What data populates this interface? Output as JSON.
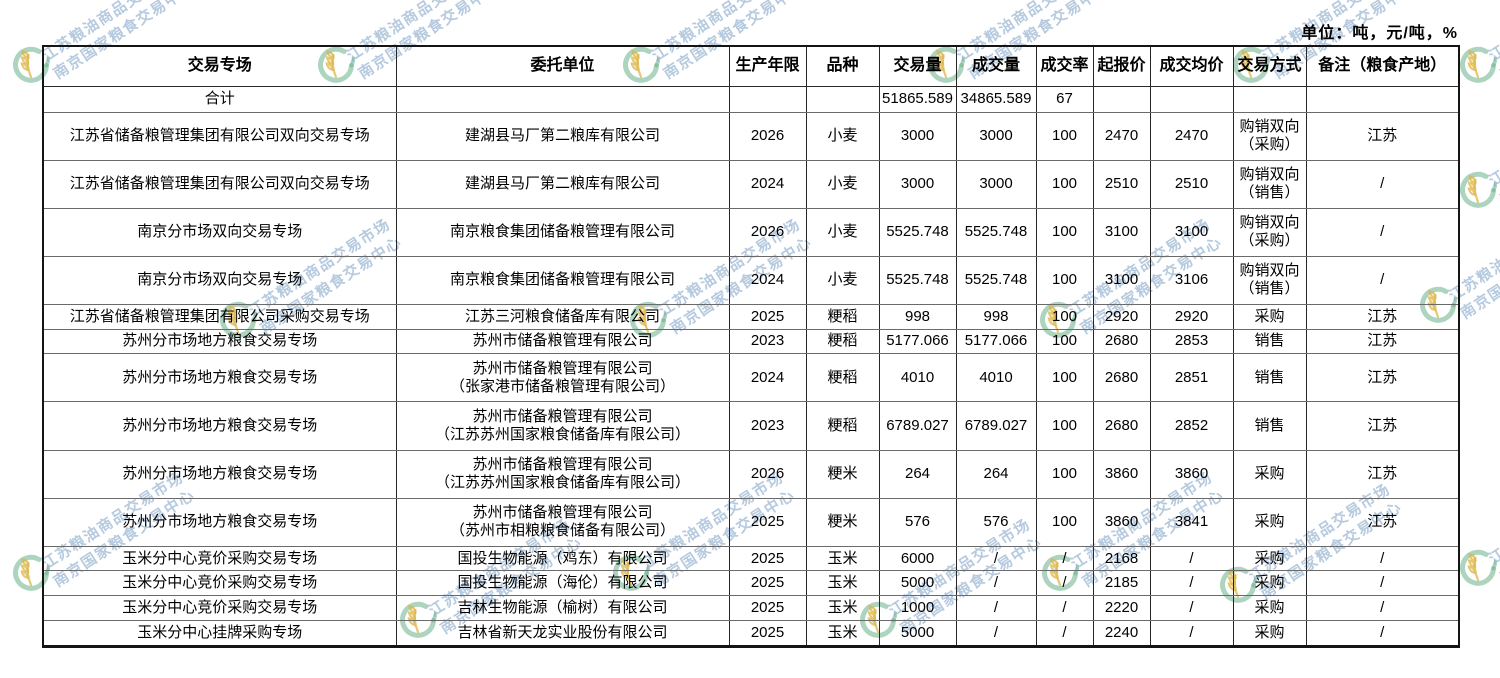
{
  "page": {
    "units_label": "单位：吨，元/吨，%"
  },
  "watermark": {
    "line1": "江苏粮油商品交易市场",
    "line2": "南京国家粮食交易中心",
    "text_color": "rgba(122,159,197,0.55)",
    "logo_ring_color": "rgba(105,176,139,0.55)",
    "logo_wheat_color": "rgba(220,180,70,0.75)"
  },
  "table": {
    "headers": [
      "交易专场",
      "委托单位",
      "生产年限",
      "品种",
      "交易量",
      "成交量",
      "成交率",
      "起报价",
      "成交均价",
      "交易方式",
      "备注（粮食产地）"
    ],
    "summary_row": [
      "合计",
      "",
      "",
      "",
      "51865.589",
      "34865.589",
      "67",
      "",
      "",
      "",
      ""
    ],
    "rows": [
      [
        "江苏省储备粮管理集团有限公司双向交易专场",
        "建湖县马厂第二粮库有限公司",
        "2026",
        "小麦",
        "3000",
        "3000",
        "100",
        "2470",
        "2470",
        "购销双向\n（采购）",
        "江苏"
      ],
      [
        "江苏省储备粮管理集团有限公司双向交易专场",
        "建湖县马厂第二粮库有限公司",
        "2024",
        "小麦",
        "3000",
        "3000",
        "100",
        "2510",
        "2510",
        "购销双向\n（销售）",
        "/"
      ],
      [
        "南京分市场双向交易专场",
        "南京粮食集团储备粮管理有限公司",
        "2026",
        "小麦",
        "5525.748",
        "5525.748",
        "100",
        "3100",
        "3100",
        "购销双向\n（采购）",
        "/"
      ],
      [
        "南京分市场双向交易专场",
        "南京粮食集团储备粮管理有限公司",
        "2024",
        "小麦",
        "5525.748",
        "5525.748",
        "100",
        "3100",
        "3106",
        "购销双向\n（销售）",
        "/"
      ],
      [
        "江苏省储备粮管理集团有限公司采购交易专场",
        "江苏三河粮食储备库有限公司",
        "2025",
        "粳稻",
        "998",
        "998",
        "100",
        "2920",
        "2920",
        "采购",
        "江苏"
      ],
      [
        "苏州分市场地方粮食交易专场",
        "苏州市储备粮管理有限公司",
        "2023",
        "粳稻",
        "5177.066",
        "5177.066",
        "100",
        "2680",
        "2853",
        "销售",
        "江苏"
      ],
      [
        "苏州分市场地方粮食交易专场",
        "苏州市储备粮管理有限公司\n（张家港市储备粮管理有限公司）",
        "2024",
        "粳稻",
        "4010",
        "4010",
        "100",
        "2680",
        "2851",
        "销售",
        "江苏"
      ],
      [
        "苏州分市场地方粮食交易专场",
        "苏州市储备粮管理有限公司\n（江苏苏州国家粮食储备库有限公司）",
        "2023",
        "粳稻",
        "6789.027",
        "6789.027",
        "100",
        "2680",
        "2852",
        "销售",
        "江苏"
      ],
      [
        "苏州分市场地方粮食交易专场",
        "苏州市储备粮管理有限公司\n（江苏苏州国家粮食储备库有限公司）",
        "2026",
        "粳米",
        "264",
        "264",
        "100",
        "3860",
        "3860",
        "采购",
        "江苏"
      ],
      [
        "苏州分市场地方粮食交易专场",
        "苏州市储备粮管理有限公司\n（苏州市相粮粮食储备有限公司）",
        "2025",
        "粳米",
        "576",
        "576",
        "100",
        "3860",
        "3841",
        "采购",
        "江苏"
      ],
      [
        "玉米分中心竞价采购交易专场",
        "国投生物能源（鸡东）有限公司",
        "2025",
        "玉米",
        "6000",
        "/",
        "/",
        "2168",
        "/",
        "采购",
        "/"
      ],
      [
        "玉米分中心竞价采购交易专场",
        "国投生物能源（海伦）有限公司",
        "2025",
        "玉米",
        "5000",
        "/",
        "/",
        "2185",
        "/",
        "采购",
        "/"
      ],
      [
        "玉米分中心竞价采购交易专场",
        "吉林生物能源（榆树）有限公司",
        "2025",
        "玉米",
        "1000",
        "/",
        "/",
        "2220",
        "/",
        "采购",
        "/"
      ],
      [
        "玉米分中心挂牌采购专场",
        "吉林省新天龙实业股份有限公司",
        "2025",
        "玉米",
        "5000",
        "/",
        "/",
        "2240",
        "/",
        "采购",
        "/"
      ]
    ]
  }
}
